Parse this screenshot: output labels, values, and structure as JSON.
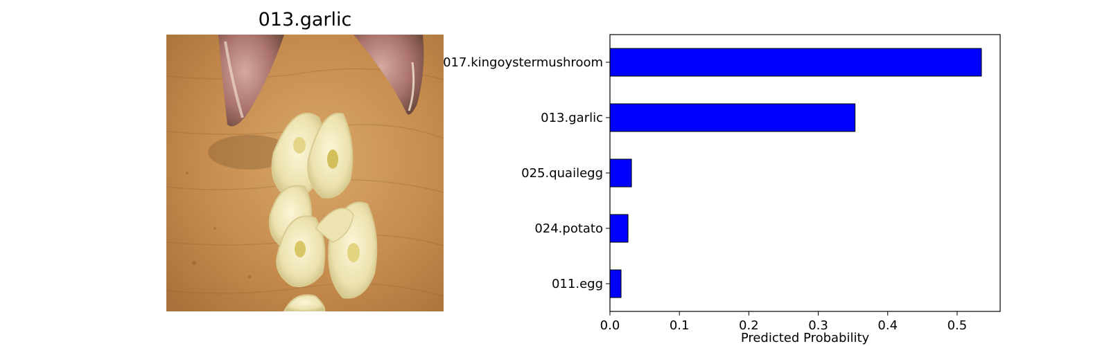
{
  "image_panel": {
    "title": "013.garlic",
    "photo_subject": "sliced garlic cloves on a wooden cutting board"
  },
  "chart_data": {
    "type": "bar",
    "orientation": "horizontal",
    "categories": [
      "017.kingoystermushroom",
      "013.garlic",
      "025.quailegg",
      "024.potato",
      "011.egg"
    ],
    "values": [
      0.535,
      0.353,
      0.031,
      0.026,
      0.016
    ],
    "xlabel": "Predicted Probability",
    "ylabel": "",
    "title": "",
    "xlim": [
      0,
      0.562
    ],
    "xticks": [
      "0.0",
      "0.1",
      "0.2",
      "0.3",
      "0.4",
      "0.5"
    ],
    "bar_color": "#0000ff",
    "bar_edge_color": "#000000",
    "grid": false,
    "legend": "none"
  }
}
